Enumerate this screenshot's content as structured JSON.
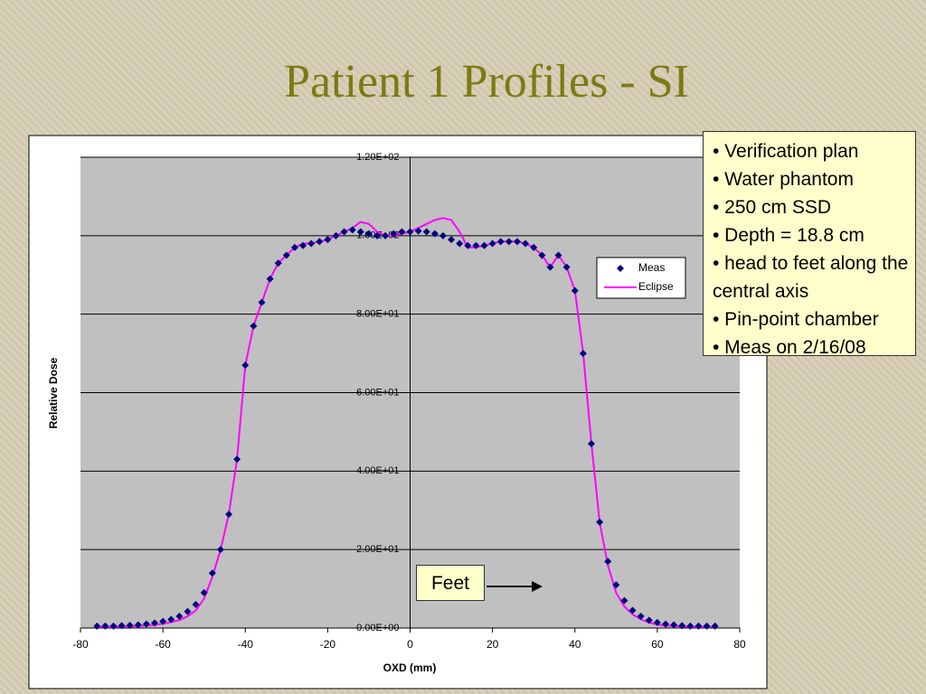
{
  "chart_data": {
    "type": "scatter_line",
    "title": "Patient 1 Profiles - SI",
    "x_label": "OXD (mm)",
    "y_label": "Relative Dose",
    "x": [
      -76,
      -74,
      -72,
      -70,
      -68,
      -66,
      -64,
      -62,
      -60,
      -58,
      -56,
      -54,
      -52,
      -50,
      -48,
      -46,
      -44,
      -42,
      -40,
      -38,
      -36,
      -34,
      -32,
      -30,
      -28,
      -26,
      -24,
      -22,
      -20,
      -18,
      -16,
      -14,
      -12,
      -10,
      -8,
      -6,
      -4,
      -2,
      0,
      2,
      4,
      6,
      8,
      10,
      12,
      14,
      16,
      18,
      20,
      22,
      24,
      26,
      28,
      30,
      32,
      34,
      36,
      38,
      40,
      42,
      44,
      46,
      48,
      50,
      52,
      54,
      56,
      58,
      60,
      62,
      64,
      66,
      68,
      70,
      72,
      74
    ],
    "series": [
      {
        "name": "Meas",
        "color": "#000080",
        "marker": "diamond",
        "values": [
          0.5,
          0.5,
          0.5,
          0.6,
          0.7,
          0.8,
          1,
          1.3,
          1.7,
          2.2,
          3,
          4.2,
          6,
          9,
          14,
          20,
          29,
          43,
          67,
          77,
          83,
          89,
          93,
          95,
          97,
          97.5,
          98,
          98.5,
          99,
          100,
          101,
          101.5,
          101,
          100.5,
          100,
          100,
          100.5,
          101,
          101,
          101.2,
          101,
          100.5,
          100,
          99,
          98,
          97.5,
          97.5,
          97.5,
          98,
          98.5,
          98.5,
          98.5,
          98,
          97,
          95,
          92,
          95,
          92,
          86,
          70,
          47,
          27,
          17,
          11,
          7,
          4.5,
          3,
          2,
          1.4,
          1,
          0.8,
          0.6,
          0.5,
          0.5,
          0.5,
          0.5
        ]
      },
      {
        "name": "Eclipse",
        "color": "#ff00ff",
        "marker": "line",
        "values": [
          0.3,
          0.3,
          0.3,
          0.4,
          0.4,
          0.5,
          0.6,
          0.8,
          1.1,
          1.5,
          2,
          3,
          4.5,
          7.5,
          13,
          20,
          29,
          43,
          67,
          77,
          83,
          89,
          93,
          95,
          97,
          98,
          98,
          98.5,
          99,
          100,
          101,
          102,
          103.5,
          103,
          101,
          100,
          100,
          100.5,
          101,
          102,
          103,
          104,
          104.5,
          104,
          101,
          97,
          97,
          97.5,
          98,
          98.5,
          98.5,
          98.5,
          98,
          97,
          95,
          92,
          95,
          92,
          86,
          70,
          47,
          27,
          16,
          9,
          5.5,
          3.5,
          2.2,
          1.4,
          0.9,
          0.6,
          0.5,
          0.4,
          0.3,
          0.3,
          0.3,
          0.3
        ]
      }
    ],
    "xlim": [
      -80,
      80
    ],
    "xticks": [
      -80,
      -60,
      -40,
      -20,
      0,
      20,
      40,
      60,
      80
    ],
    "ylim": [
      0,
      120
    ],
    "yticks": [
      {
        "value": 0,
        "label": "0.00E+00"
      },
      {
        "value": 20,
        "label": "2.00E+01"
      },
      {
        "value": 40,
        "label": "4.00E+01"
      },
      {
        "value": 60,
        "label": "6.00E+01"
      },
      {
        "value": 80,
        "label": "8.00E+01"
      },
      {
        "value": 100,
        "label": "1.00E+02"
      },
      {
        "value": 120,
        "label": "1.20E+02"
      }
    ],
    "grid": true,
    "legend": "right",
    "notes": [
      "• Verification plan",
      "• Water phantom",
      "• 250 cm SSD",
      "• Depth = 18.8 cm",
      "• head to feet along the central axis",
      "• Pin-point chamber",
      "• Meas on 2/16/08"
    ],
    "annotation": "Feet"
  }
}
